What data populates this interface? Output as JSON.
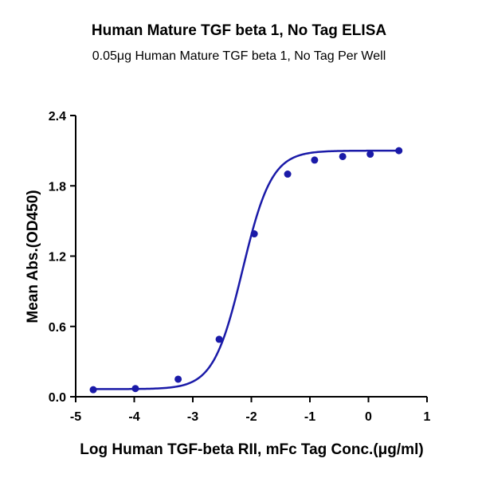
{
  "chart_data": {
    "type": "scatter",
    "title": "Human Mature TGF beta 1, No Tag ELISA",
    "subtitle": "0.05μg Human Mature TGF beta 1, No Tag Per Well",
    "xlabel": "Log Human TGF-beta RII, mFc Tag Conc.(μg/ml)",
    "ylabel": "Mean Abs.(OD450)",
    "xlim": [
      -5,
      1
    ],
    "ylim": [
      0,
      2.4
    ],
    "xticks": [
      "-5",
      "-4",
      "-3",
      "-2",
      "-1",
      "0",
      "1"
    ],
    "yticks": [
      "0.0",
      "0.6",
      "1.2",
      "1.8",
      "2.4"
    ],
    "grid": false,
    "colors": {
      "series": "#1a1aa8",
      "axis": "#000000"
    },
    "series": [
      {
        "x": [
          -4.7,
          -3.98,
          -3.25,
          -2.55,
          -1.95,
          -1.38,
          -0.92,
          -0.44,
          0.03,
          0.52
        ],
        "y": [
          0.06,
          0.07,
          0.15,
          0.49,
          1.39,
          1.9,
          2.02,
          2.05,
          2.07,
          2.1
        ]
      }
    ],
    "fit": {
      "type": "4PL",
      "bottom": 0.065,
      "top": 2.1,
      "logEC50": -2.15,
      "hill": 1.75,
      "xrange": [
        -4.7,
        0.52
      ]
    }
  }
}
